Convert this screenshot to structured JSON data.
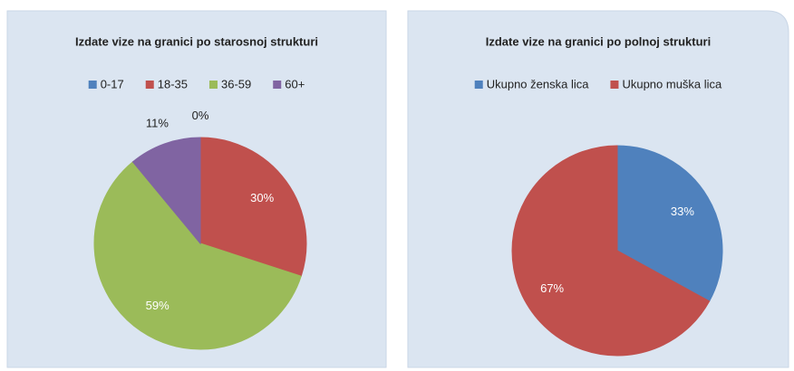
{
  "chart_data": [
    {
      "type": "pie",
      "title": "Izdate vize na granici po starosnoj strukturi",
      "categories": [
        "0-17",
        "18-35",
        "36-59",
        "60+"
      ],
      "values": [
        0,
        30,
        59,
        11
      ],
      "value_labels": [
        "0%",
        "30%",
        "59%",
        "11%"
      ],
      "colors": [
        "#4f81bd",
        "#c0504d",
        "#9bbb59",
        "#8064a2"
      ],
      "legend": "top"
    },
    {
      "type": "pie",
      "title": "Izdate vize na granici po polnoj strukturi",
      "categories": [
        "Ukupno ženska lica",
        "Ukupno muška lica"
      ],
      "values": [
        33,
        67
      ],
      "value_labels": [
        "33%",
        "67%"
      ],
      "colors": [
        "#4f81bd",
        "#c0504d"
      ],
      "legend": "top"
    }
  ]
}
